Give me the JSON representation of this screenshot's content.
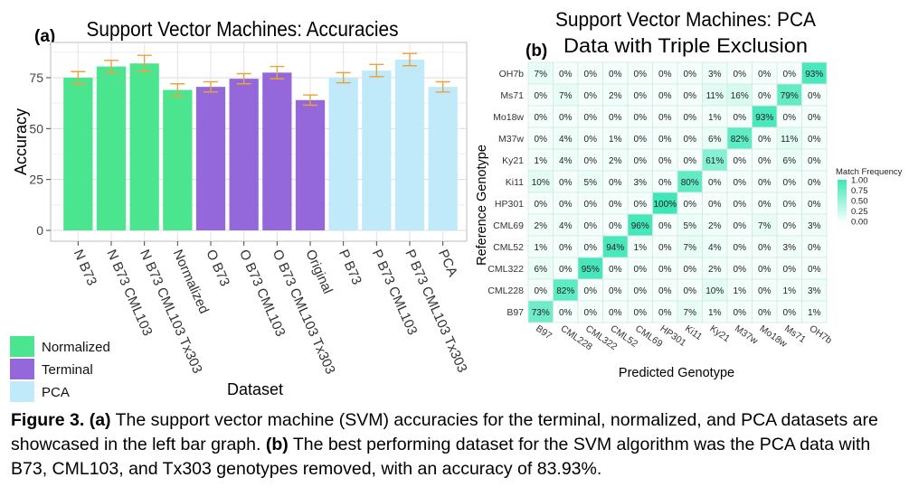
{
  "panel_a_tag": "(a)",
  "panel_b_tag": "(b)",
  "caption": {
    "fig_label": "Figure 3.",
    "a_tag": "(a)",
    "a_text": " The support vector machine (SVM) accuracies for the terminal, normalized, and PCA datasets are showcased in the left bar graph. ",
    "b_tag": "(b)",
    "b_text": " The best performing dataset for the SVM algorithm was the PCA data with B73, CML103, and Tx303 genotypes removed, with an accuracy of 83.93%."
  },
  "colors": {
    "normalized": "#4ce58f",
    "terminal": "#9467db",
    "pca": "#c0e9fa",
    "error_bar": "#e8a33c",
    "heat_low": "#f5fffb",
    "heat_high": "#3ee6b8"
  },
  "chart_data": [
    {
      "type": "bar",
      "title": "Support Vector Machines: Accuracies",
      "xlabel": "Dataset",
      "ylabel": "Accuracy",
      "ylim": [
        0,
        90
      ],
      "yticks": [
        0,
        25,
        50,
        75
      ],
      "categories": [
        "N B73",
        "N B73 CML103",
        "N B73 CML103 Tx303",
        "Normalized",
        "O B73",
        "O B73 CML103",
        "O B73 CML103 Tx303",
        "Original",
        "P B73",
        "P B73 CML103",
        "P B73 CML103 Tx303",
        "PCA"
      ],
      "values": [
        75,
        80.5,
        82,
        69,
        70.5,
        74.5,
        77.5,
        64,
        75,
        78.5,
        83.9,
        70.5
      ],
      "error": [
        3,
        3,
        4,
        3,
        2.5,
        2.5,
        3,
        2.5,
        2.5,
        3,
        3,
        2.5
      ],
      "groups": [
        "Normalized",
        "Normalized",
        "Normalized",
        "Normalized",
        "Terminal",
        "Terminal",
        "Terminal",
        "Terminal",
        "PCA",
        "PCA",
        "PCA",
        "PCA"
      ],
      "legend": [
        {
          "name": "Normalized",
          "color": "#4ce58f"
        },
        {
          "name": "Terminal",
          "color": "#9467db"
        },
        {
          "name": "PCA",
          "color": "#c0e9fa"
        }
      ],
      "legend_position": "bottom-left",
      "grid": true
    },
    {
      "type": "heatmap",
      "title": [
        "Support Vector Machines: PCA",
        "Data with Triple Exclusion"
      ],
      "xlabel": "Predicted Genotype",
      "ylabel": "Reference Genotype",
      "x_categories": [
        "B97",
        "CML228",
        "CML322",
        "CML52",
        "CML69",
        "HP301",
        "Ki11",
        "Ky21",
        "M37w",
        "Mo18w",
        "Ms71",
        "OH7b"
      ],
      "y_categories": [
        "OH7b",
        "Ms71",
        "Mo18w",
        "M37w",
        "Ky21",
        "Ki11",
        "HP301",
        "CML69",
        "CML52",
        "CML322",
        "CML228",
        "B97"
      ],
      "values": [
        [
          7,
          0,
          0,
          0,
          0,
          0,
          0,
          3,
          0,
          0,
          0,
          93
        ],
        [
          0,
          7,
          0,
          2,
          0,
          0,
          0,
          11,
          16,
          0,
          79,
          0
        ],
        [
          0,
          0,
          0,
          0,
          0,
          0,
          0,
          1,
          0,
          93,
          0,
          0
        ],
        [
          0,
          4,
          0,
          1,
          0,
          0,
          0,
          6,
          82,
          0,
          11,
          0
        ],
        [
          1,
          4,
          0,
          2,
          0,
          0,
          0,
          61,
          0,
          0,
          6,
          0
        ],
        [
          10,
          0,
          5,
          0,
          3,
          0,
          80,
          0,
          0,
          0,
          0,
          0
        ],
        [
          0,
          0,
          0,
          0,
          0,
          100,
          0,
          0,
          0,
          0,
          0,
          0
        ],
        [
          2,
          4,
          0,
          0,
          96,
          0,
          5,
          2,
          0,
          7,
          0,
          3
        ],
        [
          1,
          0,
          0,
          94,
          1,
          0,
          7,
          4,
          0,
          0,
          3,
          0
        ],
        [
          6,
          0,
          95,
          0,
          0,
          0,
          0,
          2,
          0,
          0,
          0,
          0
        ],
        [
          0,
          82,
          0,
          0,
          0,
          0,
          0,
          10,
          1,
          0,
          1,
          3
        ],
        [
          73,
          0,
          0,
          0,
          0,
          0,
          7,
          1,
          0,
          0,
          0,
          1
        ]
      ],
      "value_suffix": "%",
      "colorbar": {
        "title": "Match Frequency",
        "ticks": [
          "1.00",
          "0.75",
          "0.50",
          "0.25",
          "0.00"
        ],
        "range": [
          0,
          1
        ]
      }
    }
  ]
}
